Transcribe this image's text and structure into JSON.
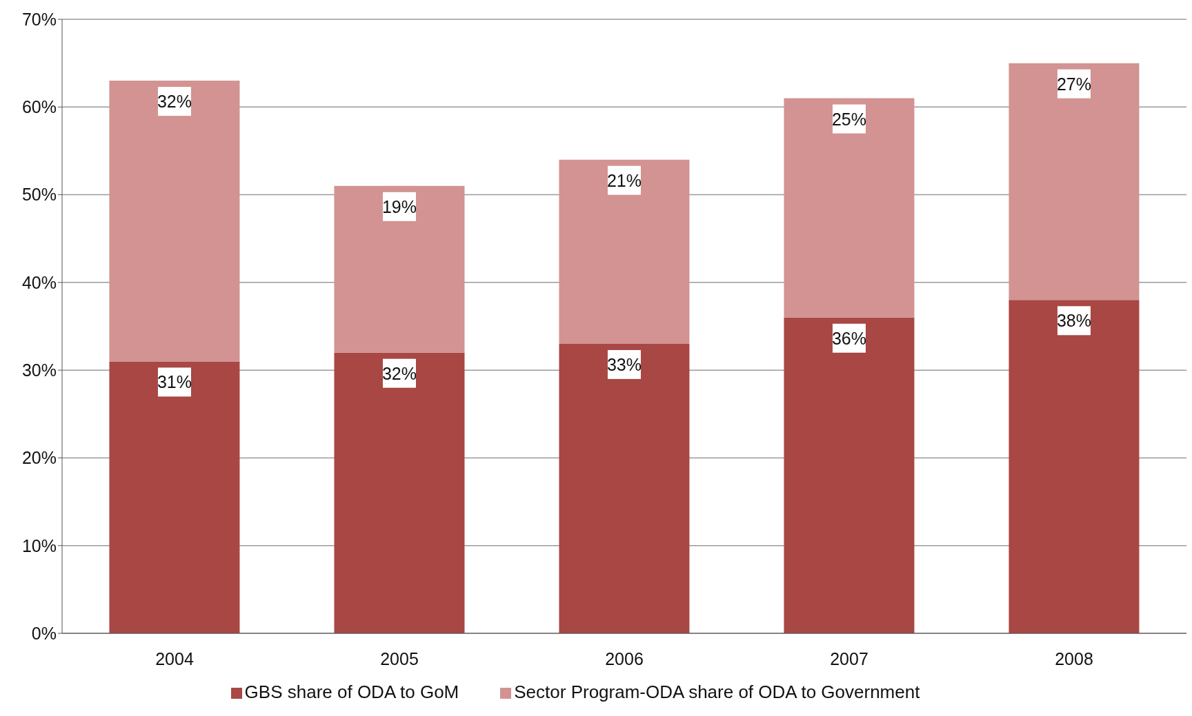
{
  "chart_data": {
    "type": "bar",
    "stacked": true,
    "categories": [
      "2004",
      "2005",
      "2006",
      "2007",
      "2008"
    ],
    "series": [
      {
        "name": "GBS share of ODA to GoM",
        "color": "#a84744",
        "values": [
          31,
          32,
          33,
          36,
          38
        ],
        "value_labels": [
          "31%",
          "32%",
          "33%",
          "36%",
          "38%"
        ]
      },
      {
        "name": "Sector Program-ODA share of ODA to Government",
        "color": "#d29392",
        "values": [
          32,
          19,
          21,
          25,
          27
        ],
        "value_labels": [
          "32%",
          "19%",
          "21%",
          "25%",
          "27%"
        ]
      }
    ],
    "ylim": [
      0,
      70
    ],
    "yticks": [
      {
        "value": 0,
        "label": "0%"
      },
      {
        "value": 10,
        "label": "10%"
      },
      {
        "value": 20,
        "label": "20%"
      },
      {
        "value": 30,
        "label": "30%"
      },
      {
        "value": 40,
        "label": "40%"
      },
      {
        "value": 50,
        "label": "50%"
      },
      {
        "value": 60,
        "label": "60%"
      },
      {
        "value": 70,
        "label": "70%"
      }
    ],
    "grid": "y",
    "legend": "bottom"
  }
}
